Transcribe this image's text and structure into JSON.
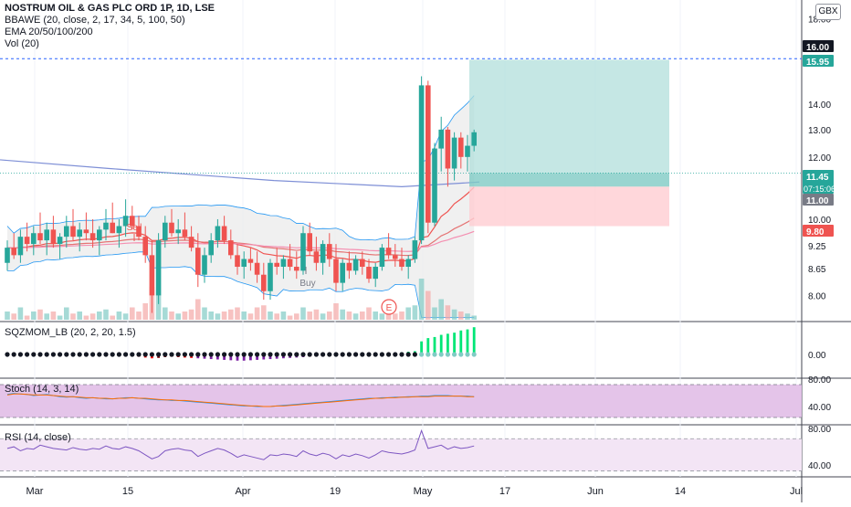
{
  "header": {
    "symbol_title": "NOSTRUM OIL & GAS PLC ORD 1P, 1D, LSE",
    "studies": [
      "BBAWE (20, close, 2, 17, 34, 5, 100, 50)",
      "EMA 20/50/100/200",
      "Vol (20)"
    ],
    "currency_button": "GBX"
  },
  "colors": {
    "up": "#26a69a",
    "down": "#ef5350",
    "target_zone": "#b2dfdb",
    "stop_zone": "#ffcdd2",
    "bb_fill": "#ececec",
    "ema_blue": "#7e8fd6",
    "sqz_green": "#00e676",
    "stoch_bg": "#e1bee7",
    "rsi_bg": "#f3e5f5"
  },
  "price_axis": {
    "ticks": [
      "18.00",
      "14.00",
      "13.00",
      "12.00",
      "10.00",
      "9.25",
      "8.65",
      "8.00"
    ],
    "badges": [
      {
        "label": "16.00",
        "value": 16.0,
        "color": "#131722"
      },
      {
        "label": "15.95",
        "value": 15.95,
        "color": "#26a69a"
      },
      {
        "label": "11.45",
        "value": 11.45,
        "color": "#26a69a",
        "sub": "07:15:06"
      },
      {
        "label": "11.00",
        "value": 11.0,
        "color": "#787b86"
      },
      {
        "label": "9.80",
        "value": 9.8,
        "color": "#ef5350"
      }
    ]
  },
  "time_axis": [
    "Mar",
    "15",
    "Apr",
    "19",
    "May",
    "17",
    "Jun",
    "14",
    "Jul"
  ],
  "annotations": {
    "sell": "Sell",
    "buy": "Buy",
    "earnings": "E"
  },
  "panes": {
    "sqz": {
      "title": "SQZMOM_LB (20, 2, 20, 1.5)",
      "tick": "0.00"
    },
    "stoch": {
      "title": "Stoch (14, 3, 14)",
      "ticks": [
        "80.00",
        "40.00"
      ]
    },
    "rsi": {
      "title": "RSI (14, close)",
      "ticks": [
        "80.00",
        "40.00"
      ]
    }
  },
  "chart_data": {
    "type": "candlestick",
    "price_scale": "log",
    "candles": [
      [
        8.8,
        9.4,
        8.6,
        9.2
      ],
      [
        9.2,
        9.6,
        8.9,
        9.0
      ],
      [
        9.0,
        9.7,
        8.8,
        9.5
      ],
      [
        9.5,
        9.9,
        9.1,
        9.3
      ],
      [
        9.3,
        9.8,
        9.0,
        9.6
      ],
      [
        9.6,
        10.2,
        9.3,
        9.4
      ],
      [
        9.4,
        9.9,
        9.0,
        9.7
      ],
      [
        9.7,
        10.1,
        9.2,
        9.3
      ],
      [
        9.3,
        9.6,
        8.9,
        9.5
      ],
      [
        9.5,
        10.1,
        9.2,
        9.8
      ],
      [
        9.8,
        10.3,
        9.4,
        9.5
      ],
      [
        9.5,
        9.9,
        9.1,
        9.7
      ],
      [
        9.7,
        10.2,
        9.4,
        9.6
      ],
      [
        9.6,
        10.0,
        9.2,
        9.4
      ],
      [
        9.4,
        9.8,
        9.0,
        9.7
      ],
      [
        9.7,
        10.3,
        9.4,
        9.9
      ],
      [
        9.9,
        10.5,
        9.6,
        9.6
      ],
      [
        9.6,
        10.0,
        9.2,
        9.8
      ],
      [
        9.8,
        10.6,
        9.5,
        10.1
      ],
      [
        10.1,
        10.4,
        9.7,
        9.8
      ],
      [
        9.8,
        10.1,
        9.4,
        9.5
      ],
      [
        9.5,
        9.8,
        8.8,
        9.0
      ],
      [
        9.0,
        9.4,
        7.6,
        8.0
      ],
      [
        8.0,
        9.6,
        7.8,
        9.4
      ],
      [
        9.4,
        10.1,
        9.2,
        9.9
      ],
      [
        9.9,
        10.3,
        9.5,
        9.6
      ],
      [
        9.6,
        10.0,
        9.3,
        9.7
      ],
      [
        9.7,
        10.2,
        9.4,
        9.5
      ],
      [
        9.5,
        9.8,
        9.1,
        9.2
      ],
      [
        9.2,
        9.6,
        8.2,
        8.5
      ],
      [
        8.5,
        9.2,
        8.3,
        9.0
      ],
      [
        9.0,
        9.6,
        8.8,
        9.4
      ],
      [
        9.4,
        10.0,
        9.2,
        9.8
      ],
      [
        9.8,
        10.1,
        9.3,
        9.4
      ],
      [
        9.4,
        9.7,
        8.9,
        9.0
      ],
      [
        9.0,
        9.3,
        8.5,
        8.7
      ],
      [
        8.7,
        9.1,
        8.4,
        8.9
      ],
      [
        8.9,
        9.2,
        8.6,
        8.8
      ],
      [
        8.8,
        9.1,
        8.3,
        8.5
      ],
      [
        8.5,
        8.8,
        7.9,
        8.1
      ],
      [
        8.1,
        8.9,
        7.9,
        8.8
      ],
      [
        8.8,
        9.2,
        8.5,
        8.7
      ],
      [
        8.7,
        9.0,
        8.4,
        8.9
      ],
      [
        8.9,
        9.3,
        8.6,
        8.7
      ],
      [
        8.7,
        9.1,
        8.4,
        8.6
      ],
      [
        8.6,
        9.8,
        8.5,
        9.6
      ],
      [
        9.6,
        9.9,
        9.0,
        9.1
      ],
      [
        9.1,
        9.5,
        8.6,
        8.8
      ],
      [
        8.8,
        9.4,
        8.5,
        9.3
      ],
      [
        9.3,
        9.6,
        8.7,
        8.9
      ],
      [
        8.9,
        9.3,
        8.1,
        8.3
      ],
      [
        8.3,
        8.9,
        8.1,
        8.8
      ],
      [
        8.8,
        9.1,
        8.4,
        8.6
      ],
      [
        8.6,
        9.0,
        8.5,
        8.9
      ],
      [
        8.9,
        9.1,
        8.5,
        8.7
      ],
      [
        8.7,
        8.9,
        8.3,
        8.4
      ],
      [
        8.4,
        8.8,
        8.2,
        8.7
      ],
      [
        8.7,
        9.3,
        8.6,
        9.2
      ],
      [
        9.2,
        9.6,
        8.9,
        9.0
      ],
      [
        9.0,
        9.3,
        8.7,
        8.9
      ],
      [
        8.9,
        9.2,
        8.6,
        8.7
      ],
      [
        8.7,
        9.0,
        8.4,
        8.9
      ],
      [
        8.9,
        9.5,
        8.8,
        9.4
      ],
      [
        9.4,
        15.2,
        9.3,
        14.8
      ],
      [
        14.8,
        15.0,
        9.6,
        9.9
      ],
      [
        9.9,
        12.5,
        9.8,
        12.3
      ],
      [
        12.3,
        13.5,
        11.5,
        13.0
      ],
      [
        13.0,
        13.1,
        11.0,
        11.6
      ],
      [
        11.6,
        12.9,
        11.2,
        12.7
      ],
      [
        12.7,
        12.9,
        11.6,
        12.0
      ],
      [
        12.0,
        12.8,
        11.5,
        12.4
      ],
      [
        12.4,
        13.0,
        12.2,
        12.9
      ]
    ],
    "volume": [
      0.2,
      0.15,
      0.3,
      0.1,
      0.2,
      0.25,
      0.15,
      0.2,
      0.1,
      0.3,
      0.15,
      0.2,
      0.1,
      0.15,
      0.2,
      0.25,
      0.1,
      0.2,
      0.15,
      0.3,
      0.2,
      0.4,
      0.8,
      0.6,
      0.3,
      0.2,
      0.15,
      0.2,
      0.25,
      0.5,
      0.3,
      0.2,
      0.15,
      0.2,
      0.25,
      0.3,
      0.2,
      0.15,
      0.3,
      0.35,
      0.2,
      0.15,
      0.2,
      0.1,
      0.15,
      0.3,
      0.2,
      0.25,
      0.15,
      0.2,
      0.4,
      0.25,
      0.2,
      0.15,
      0.2,
      0.3,
      0.2,
      0.15,
      0.2,
      0.15,
      0.2,
      0.3,
      0.35,
      1.0,
      0.7,
      0.3,
      0.5,
      0.35,
      0.25,
      0.2,
      0.15,
      0.1
    ],
    "position": {
      "target": 15.95,
      "entry": 11.45,
      "stop": 9.8,
      "alert": 16.0
    },
    "sqz_momentum": [
      -0.2,
      -0.25,
      -0.2,
      -0.15,
      -0.2,
      -0.25,
      -0.2,
      -0.15,
      -0.1,
      -0.15,
      -0.2,
      -0.15,
      -0.1,
      -0.2,
      -0.15,
      -0.2,
      -0.1,
      -0.15,
      -0.2,
      -0.25,
      -0.3,
      -0.4,
      -0.5,
      -0.45,
      -0.35,
      -0.3,
      -0.35,
      -0.4,
      -0.45,
      -0.5,
      -0.55,
      -0.6,
      -0.65,
      -0.7,
      -0.75,
      -0.8,
      -0.8,
      -0.75,
      -0.7,
      -0.65,
      -0.6,
      -0.55,
      -0.5,
      -0.45,
      -0.4,
      -0.35,
      -0.3,
      -0.25,
      -0.2,
      -0.15,
      -0.1,
      -0.1,
      -0.1,
      -0.05,
      -0.05,
      0.0,
      0.0,
      0.05,
      0.1,
      0.15,
      0.2,
      0.25,
      0.3,
      1.2,
      1.5,
      1.6,
      1.8,
      1.9,
      2.0,
      2.2,
      2.3,
      2.5
    ],
    "stoch_k": [
      62,
      64,
      63,
      62,
      60,
      61,
      62,
      60,
      58,
      57,
      58,
      56,
      55,
      56,
      55,
      54,
      54,
      55,
      56,
      56,
      55,
      54,
      53,
      52,
      52,
      51,
      51,
      50,
      49,
      48,
      47,
      46,
      45,
      44,
      43,
      42,
      41,
      41,
      40,
      40,
      40,
      41,
      42,
      43,
      44,
      45,
      46,
      47,
      48,
      49,
      50,
      51,
      52,
      53,
      54,
      55,
      55,
      56,
      56,
      57,
      57,
      58,
      58,
      59,
      59,
      60,
      60,
      60,
      59,
      59,
      59,
      58
    ],
    "stoch_d": [
      61,
      63,
      63,
      62,
      61,
      61,
      61,
      60,
      59,
      58,
      58,
      57,
      56,
      56,
      55,
      55,
      54,
      55,
      55,
      56,
      55,
      55,
      54,
      53,
      52,
      52,
      51,
      51,
      50,
      49,
      48,
      47,
      46,
      45,
      44,
      43,
      42,
      41,
      41,
      40,
      40,
      41,
      41,
      42,
      43,
      44,
      45,
      46,
      47,
      48,
      49,
      50,
      51,
      52,
      53,
      54,
      55,
      55,
      56,
      56,
      57,
      57,
      58,
      58,
      58,
      59,
      59,
      59,
      59,
      59,
      58,
      58
    ],
    "rsi": [
      58,
      60,
      55,
      58,
      57,
      62,
      60,
      58,
      57,
      56,
      59,
      57,
      56,
      58,
      57,
      61,
      58,
      57,
      60,
      58,
      55,
      50,
      45,
      48,
      55,
      57,
      58,
      56,
      55,
      48,
      52,
      55,
      58,
      56,
      52,
      47,
      50,
      48,
      46,
      44,
      50,
      49,
      51,
      50,
      48,
      55,
      51,
      49,
      52,
      50,
      45,
      50,
      48,
      51,
      49,
      46,
      50,
      55,
      53,
      52,
      51,
      53,
      56,
      80,
      58,
      60,
      62,
      57,
      60,
      58,
      59,
      61
    ],
    "ylim": [
      7.45,
      18.6
    ]
  }
}
